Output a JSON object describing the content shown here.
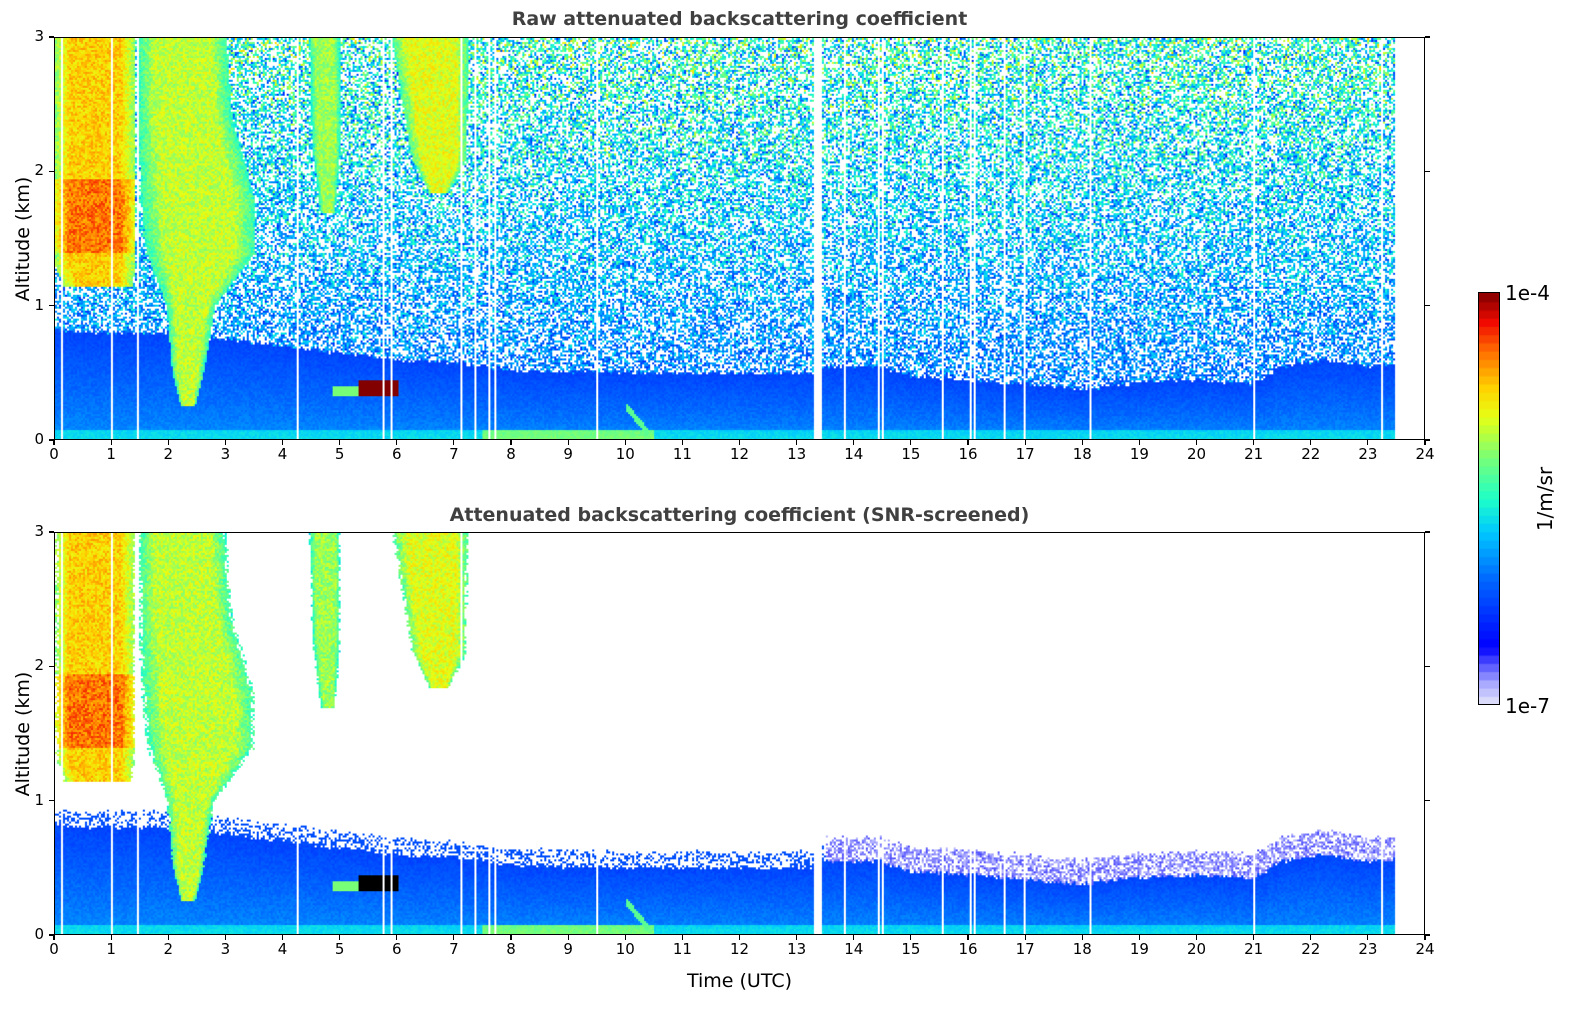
{
  "chart_data": {
    "type": "heatmap",
    "panels": [
      {
        "id": "raw",
        "title": "Raw attenuated backscattering coefficient",
        "ylabel": "Altitude (km)",
        "xlabel": "",
        "screened": false
      },
      {
        "id": "screened",
        "title": "Attenuated backscattering coefficient (SNR-screened)",
        "ylabel": "Altitude (km)",
        "xlabel": "Time (UTC)",
        "screened": true
      }
    ],
    "xlim": [
      0,
      24
    ],
    "ylim": [
      0,
      3
    ],
    "xticks": [
      "0",
      "1",
      "2",
      "3",
      "4",
      "5",
      "6",
      "7",
      "8",
      "9",
      "10",
      "11",
      "12",
      "13",
      "14",
      "15",
      "16",
      "17",
      "18",
      "19",
      "20",
      "21",
      "22",
      "23",
      "24"
    ],
    "yticks": [
      "0",
      "1",
      "2",
      "3"
    ],
    "data_end_time": 23.5,
    "colorbar": {
      "label": "1/m/sr",
      "min_label": "1e-7",
      "max_label": "1e-4",
      "log_min": -7,
      "log_max": -4,
      "scale": "log"
    },
    "boundary_layer_top_km": [
      [
        0,
        0.82
      ],
      [
        1,
        0.8
      ],
      [
        2,
        0.8
      ],
      [
        3,
        0.75
      ],
      [
        4,
        0.7
      ],
      [
        5,
        0.65
      ],
      [
        6,
        0.6
      ],
      [
        7,
        0.58
      ],
      [
        8,
        0.52
      ],
      [
        10,
        0.5
      ],
      [
        12,
        0.5
      ],
      [
        13.3,
        0.5
      ],
      [
        13.4,
        0.55
      ],
      [
        14.5,
        0.55
      ],
      [
        15,
        0.47
      ],
      [
        16,
        0.45
      ],
      [
        17,
        0.42
      ],
      [
        18,
        0.38
      ],
      [
        19,
        0.43
      ],
      [
        20,
        0.45
      ],
      [
        21,
        0.42
      ],
      [
        21.5,
        0.55
      ],
      [
        22.2,
        0.6
      ],
      [
        23,
        0.55
      ],
      [
        23.5,
        0.56
      ]
    ],
    "cloud_plumes": [
      {
        "name": "cirrus-1",
        "log_value": -4.7,
        "profile": [
          [
            1.15,
            0.15,
            1.35
          ],
          [
            1.3,
            0.0,
            1.4
          ],
          [
            3.0,
            0.0,
            1.4
          ]
        ]
      },
      {
        "name": "fall-streak",
        "log_value": -5.0,
        "profile": [
          [
            0.25,
            2.2,
            2.45
          ],
          [
            0.5,
            2.05,
            2.6
          ],
          [
            1.0,
            1.95,
            2.8
          ],
          [
            1.4,
            1.6,
            3.5
          ],
          [
            1.8,
            1.5,
            3.5
          ],
          [
            2.4,
            1.45,
            3.1
          ],
          [
            3.0,
            1.45,
            3.0
          ]
        ]
      },
      {
        "name": "plume-3",
        "log_value": -5.1,
        "profile": [
          [
            1.7,
            4.65,
            4.9
          ],
          [
            2.2,
            4.5,
            5.0
          ],
          [
            3.0,
            4.45,
            5.0
          ]
        ]
      },
      {
        "name": "plume-4",
        "log_value": -4.9,
        "profile": [
          [
            1.85,
            6.55,
            6.9
          ],
          [
            2.1,
            6.25,
            7.2
          ],
          [
            3.0,
            5.9,
            7.25
          ]
        ]
      }
    ],
    "aerosol_layer": {
      "t": [
        5.3,
        6.0
      ],
      "z": [
        0.33,
        0.45
      ],
      "log_value": -4.0
    },
    "missing_profiles_utc": [
      0.1,
      1.0,
      1.45,
      4.25,
      5.75,
      5.9,
      7.1,
      7.35,
      7.6,
      7.7,
      9.5,
      13.3,
      13.35,
      13.4,
      13.85,
      14.45,
      14.5,
      15.55,
      16.05,
      16.1,
      16.65,
      17.0,
      18.15,
      21.0,
      23.25
    ]
  }
}
